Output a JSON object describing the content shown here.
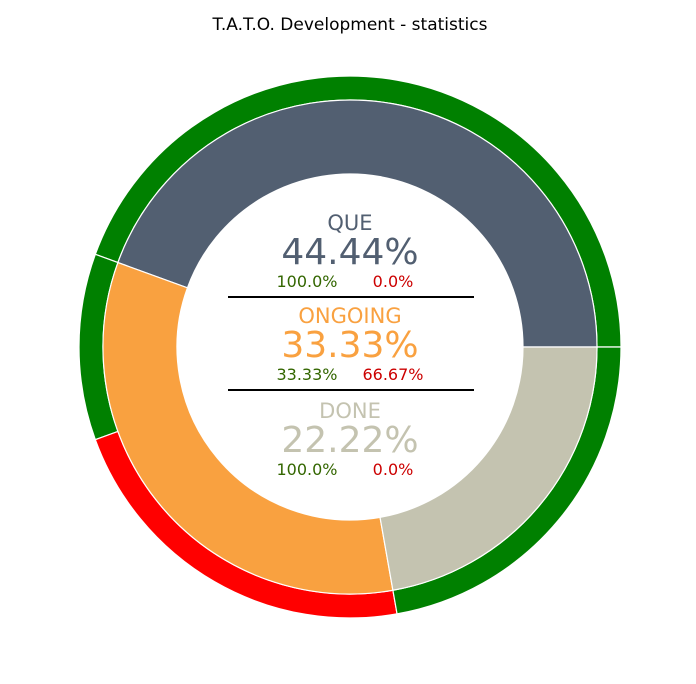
{
  "chart_data": {
    "type": "pie",
    "title": "T.A.T.O. Development - statistics",
    "categories": [
      "QUE",
      "ONGOING",
      "DONE"
    ],
    "values": [
      44.44,
      33.33,
      22.22
    ],
    "percent_labels": [
      "44.44%",
      "33.33%",
      "22.22%"
    ],
    "colors": [
      "#525f71",
      "#f9a140",
      "#c4c3b0"
    ],
    "outer_ring": {
      "values": [
        [
          100.0,
          0.0
        ],
        [
          33.33,
          66.67
        ],
        [
          100.0,
          0.0
        ]
      ],
      "labels": [
        [
          "100.0%",
          "0.0%"
        ],
        [
          "33.33%",
          "66.67%"
        ],
        [
          "100.0%",
          "0.0%"
        ]
      ],
      "colors": [
        "#008000",
        "#ff0000"
      ],
      "label_colors": [
        "#336600",
        "#cc0000"
      ]
    }
  }
}
